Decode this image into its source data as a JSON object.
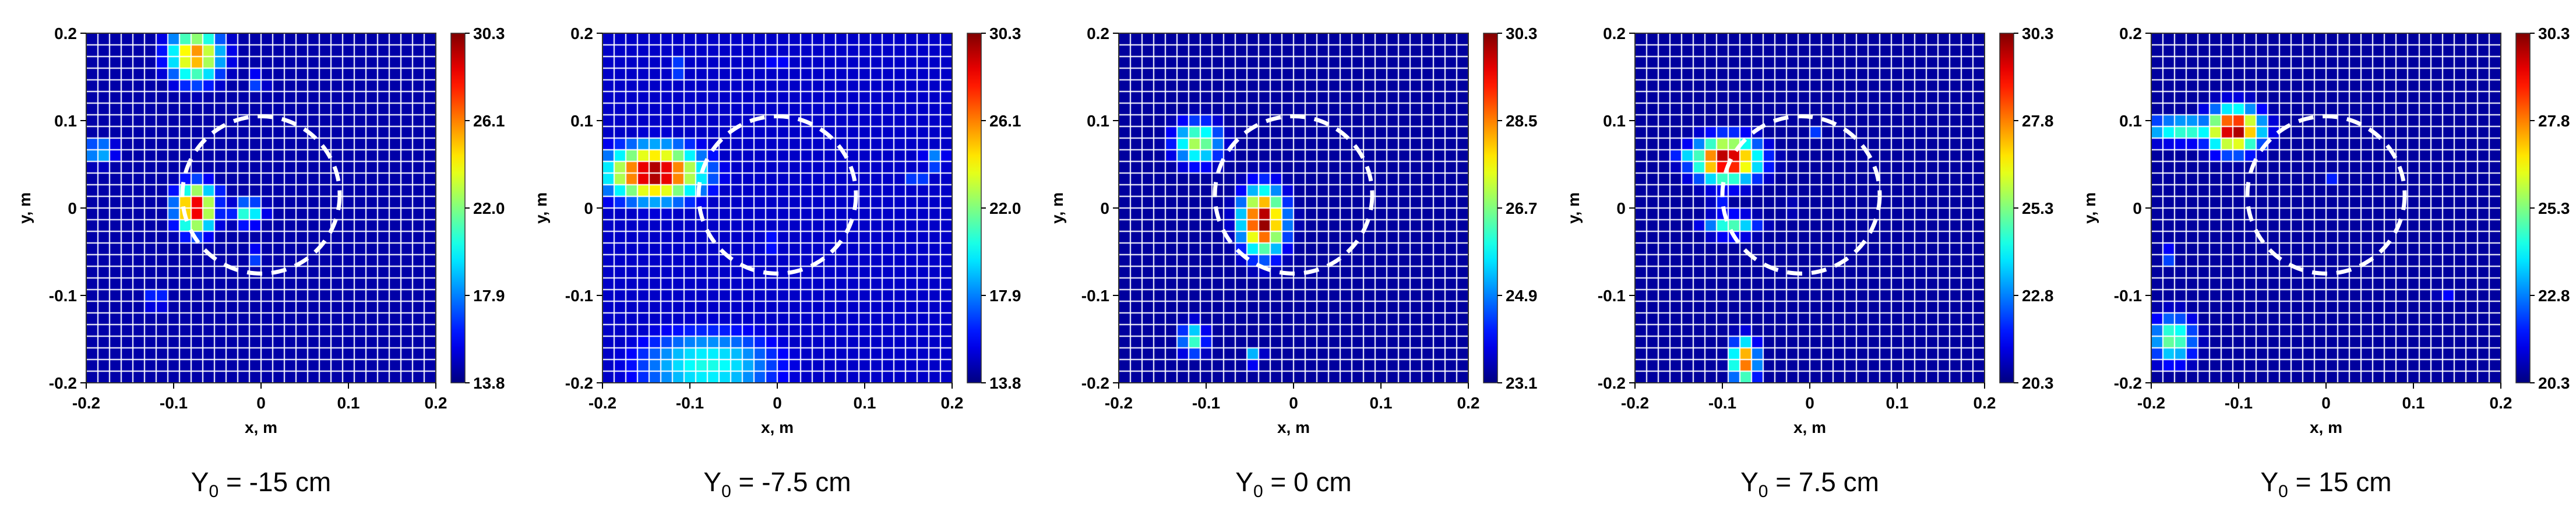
{
  "chart_data": [
    {
      "type": "heatmap",
      "caption": {
        "symbol": "Y",
        "sub": "0",
        "rest": " = -15 cm"
      },
      "xlabel": "x, m",
      "ylabel": "y, m",
      "xlim": [
        -0.2,
        0.2
      ],
      "ylim": [
        -0.2,
        0.2
      ],
      "xticks": [
        "-0.2",
        "-0.1",
        "0",
        "0.1",
        "0.2"
      ],
      "yticks": [
        "0.2",
        "0.1",
        "0",
        "-0.1",
        "-0.2"
      ],
      "colorbar": {
        "min": 13.8,
        "max": 30.3,
        "ticks": [
          "30.3",
          "26.1",
          "22.0",
          "17.9",
          "13.8"
        ]
      },
      "grid": true,
      "circle": {
        "center": [
          0,
          0.015
        ],
        "radius": 0.09,
        "style": "dashed-white"
      },
      "background_level": 0.04,
      "hotspots": [
        {
          "x": -0.075,
          "y": 0.175,
          "rx": 0.025,
          "ry": 0.025,
          "level": 0.75
        },
        {
          "x": -0.075,
          "y": 0.0,
          "rx": 0.018,
          "ry": 0.022,
          "level": 0.95
        },
        {
          "x": -0.015,
          "y": -0.005,
          "rx": 0.015,
          "ry": 0.012,
          "level": 0.45
        },
        {
          "x": -0.185,
          "y": 0.065,
          "rx": 0.015,
          "ry": 0.012,
          "level": 0.35
        },
        {
          "x": -0.005,
          "y": 0.145,
          "rx": 0.01,
          "ry": 0.008,
          "level": 0.25
        },
        {
          "x": -0.055,
          "y": 0.02,
          "rx": 0.01,
          "ry": 0.008,
          "level": 0.25
        },
        {
          "x": -0.12,
          "y": -0.105,
          "rx": 0.012,
          "ry": 0.008,
          "level": 0.25
        },
        {
          "x": -0.005,
          "y": -0.055,
          "rx": 0.008,
          "ry": 0.008,
          "level": 0.25
        }
      ]
    },
    {
      "type": "heatmap",
      "caption": {
        "symbol": "Y",
        "sub": "0",
        "rest": " = -7.5 cm"
      },
      "xlabel": "x, m",
      "ylabel": "y, m",
      "xlim": [
        -0.2,
        0.2
      ],
      "ylim": [
        -0.2,
        0.2
      ],
      "xticks": [
        "-0.2",
        "-0.1",
        "0",
        "0.1",
        "0.2"
      ],
      "yticks": [
        "0.2",
        "0.1",
        "0",
        "-0.1",
        "-0.2"
      ],
      "colorbar": {
        "min": 13.8,
        "max": 30.3,
        "ticks": [
          "30.3",
          "26.1",
          "22.0",
          "17.9",
          "13.8"
        ]
      },
      "grid": true,
      "circle": {
        "center": [
          0,
          0.015
        ],
        "radius": 0.09,
        "style": "dashed-white"
      },
      "background_level": 0.07,
      "hotspots": [
        {
          "x": -0.14,
          "y": 0.04,
          "rx": 0.045,
          "ry": 0.025,
          "level": 1.0
        },
        {
          "x": -0.08,
          "y": -0.18,
          "rx": 0.07,
          "ry": 0.035,
          "level": 0.4
        },
        {
          "x": -0.1,
          "y": -0.19,
          "rx": 0.03,
          "ry": 0.02,
          "level": 0.35
        },
        {
          "x": 0.18,
          "y": 0.055,
          "rx": 0.012,
          "ry": 0.01,
          "level": 0.3
        },
        {
          "x": 0.16,
          "y": 0.035,
          "rx": 0.01,
          "ry": 0.01,
          "level": 0.25
        },
        {
          "x": -0.115,
          "y": 0.16,
          "rx": 0.01,
          "ry": 0.01,
          "level": 0.25
        },
        {
          "x": -0.01,
          "y": -0.04,
          "rx": 0.01,
          "ry": 0.01,
          "level": 0.2
        },
        {
          "x": 0.0,
          "y": 0.165,
          "rx": 0.008,
          "ry": 0.008,
          "level": 0.2
        }
      ]
    },
    {
      "type": "heatmap",
      "caption": {
        "symbol": "Y",
        "sub": "0",
        "rest": " = 0 cm"
      },
      "xlabel": "x, m",
      "ylabel": "y, m",
      "xlim": [
        -0.2,
        0.2
      ],
      "ylim": [
        -0.2,
        0.2
      ],
      "xticks": [
        "-0.2",
        "-0.1",
        "0",
        "0.1",
        "0.2"
      ],
      "yticks": [
        "0.2",
        "0.1",
        "0",
        "-0.1",
        "-0.2"
      ],
      "colorbar": {
        "min": 23.1,
        "max": 30.3,
        "ticks": [
          "30.3",
          "28.5",
          "26.7",
          "24.9",
          "23.1"
        ]
      },
      "grid": true,
      "circle": {
        "center": [
          0,
          0.015
        ],
        "radius": 0.09,
        "style": "dashed-white"
      },
      "background_level": 0.03,
      "hotspots": [
        {
          "x": -0.035,
          "y": -0.015,
          "rx": 0.02,
          "ry": 0.03,
          "level": 1.0
        },
        {
          "x": -0.11,
          "y": 0.075,
          "rx": 0.022,
          "ry": 0.02,
          "level": 0.55
        },
        {
          "x": -0.115,
          "y": -0.15,
          "rx": 0.012,
          "ry": 0.015,
          "level": 0.45
        },
        {
          "x": -0.045,
          "y": -0.17,
          "rx": 0.008,
          "ry": 0.008,
          "level": 0.35
        }
      ]
    },
    {
      "type": "heatmap",
      "caption": {
        "symbol": "Y",
        "sub": "0",
        "rest": " = 7.5 cm"
      },
      "xlabel": "x, m",
      "ylabel": "y, m",
      "xlim": [
        -0.2,
        0.2
      ],
      "ylim": [
        -0.2,
        0.2
      ],
      "xticks": [
        "-0.2",
        "-0.1",
        "0",
        "0.1",
        "0.2"
      ],
      "yticks": [
        "0.2",
        "0.1",
        "0",
        "-0.1",
        "-0.2"
      ],
      "colorbar": {
        "min": 20.3,
        "max": 30.3,
        "ticks": [
          "30.3",
          "27.8",
          "25.3",
          "22.8",
          "20.3"
        ]
      },
      "grid": true,
      "circle": {
        "center": [
          -0.01,
          0.015
        ],
        "radius": 0.09,
        "style": "dashed-white"
      },
      "background_level": 0.03,
      "hotspots": [
        {
          "x": -0.095,
          "y": 0.055,
          "rx": 0.03,
          "ry": 0.02,
          "level": 1.0
        },
        {
          "x": -0.13,
          "y": 0.06,
          "rx": 0.02,
          "ry": 0.01,
          "level": 0.4
        },
        {
          "x": -0.075,
          "y": -0.175,
          "rx": 0.012,
          "ry": 0.02,
          "level": 0.8
        },
        {
          "x": -0.09,
          "y": -0.02,
          "rx": 0.025,
          "ry": 0.01,
          "level": 0.45
        },
        {
          "x": -0.105,
          "y": 0.005,
          "rx": 0.006,
          "ry": 0.006,
          "level": 0.25
        },
        {
          "x": 0.005,
          "y": 0.085,
          "rx": 0.006,
          "ry": 0.006,
          "level": 0.2
        },
        {
          "x": -0.015,
          "y": 0.0,
          "rx": 0.006,
          "ry": 0.006,
          "level": 0.2
        }
      ]
    },
    {
      "type": "heatmap",
      "caption": {
        "symbol": "Y",
        "sub": "0",
        "rest": " = 15 cm"
      },
      "xlabel": "x, m",
      "ylabel": "y, m",
      "xlim": [
        -0.2,
        0.2
      ],
      "ylim": [
        -0.2,
        0.2
      ],
      "xticks": [
        "-0.2",
        "-0.1",
        "0",
        "0.1",
        "0.2"
      ],
      "yticks": [
        "0.2",
        "0.1",
        "0",
        "-0.1",
        "-0.2"
      ],
      "colorbar": {
        "min": 20.3,
        "max": 30.3,
        "ticks": [
          "30.3",
          "27.8",
          "25.3",
          "22.8",
          "20.3"
        ]
      },
      "grid": true,
      "circle": {
        "center": [
          0,
          0.015
        ],
        "radius": 0.09,
        "style": "dashed-white"
      },
      "background_level": 0.03,
      "hotspots": [
        {
          "x": -0.105,
          "y": 0.09,
          "rx": 0.025,
          "ry": 0.02,
          "level": 1.0
        },
        {
          "x": -0.16,
          "y": 0.09,
          "rx": 0.045,
          "ry": 0.012,
          "level": 0.45
        },
        {
          "x": -0.175,
          "y": -0.15,
          "rx": 0.02,
          "ry": 0.022,
          "level": 0.5
        },
        {
          "x": -0.18,
          "y": -0.055,
          "rx": 0.008,
          "ry": 0.008,
          "level": 0.25
        },
        {
          "x": 0.005,
          "y": 0.03,
          "rx": 0.006,
          "ry": 0.006,
          "level": 0.2
        },
        {
          "x": 0.135,
          "y": -0.1,
          "rx": 0.006,
          "ry": 0.006,
          "level": 0.2
        }
      ]
    }
  ]
}
